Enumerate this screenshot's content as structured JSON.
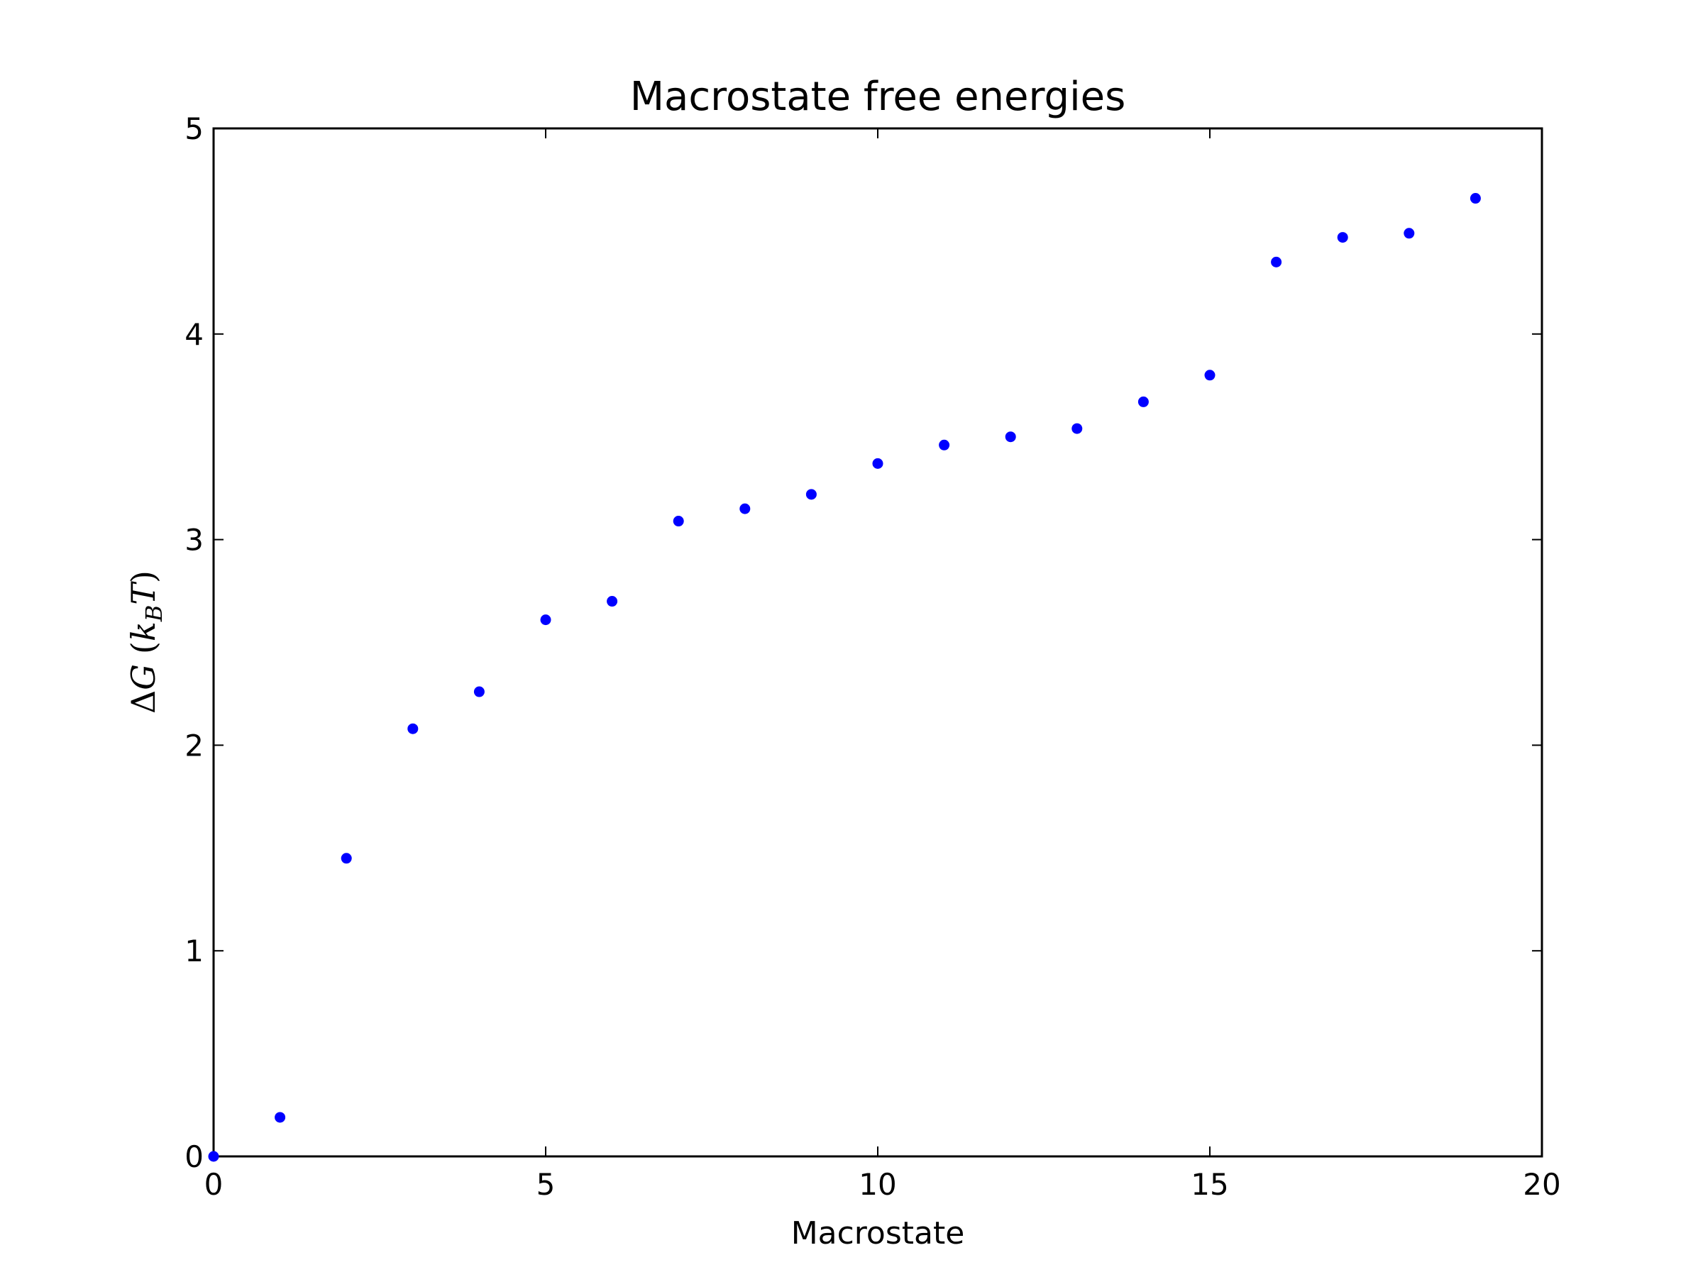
{
  "chart_data": {
    "type": "scatter",
    "title": "Macrostate free energies",
    "xlabel": "Macrostate",
    "ylabel": "ΔG (k_B T)",
    "ylabel_parts": {
      "delta": "Δ",
      "G": "G",
      "open": "(",
      "k": "k",
      "sub": "B",
      "T": "T",
      "close": ")"
    },
    "xlim": [
      0,
      20
    ],
    "ylim": [
      0,
      5
    ],
    "xticks": [
      0,
      5,
      10,
      15,
      20
    ],
    "yticks": [
      0,
      1,
      2,
      3,
      4,
      5
    ],
    "grid": false,
    "marker_color": "#0000ff",
    "x": [
      0,
      1,
      2,
      3,
      4,
      5,
      6,
      7,
      8,
      9,
      10,
      11,
      12,
      13,
      14,
      15,
      16,
      17,
      18,
      19
    ],
    "y": [
      0.0,
      0.19,
      1.45,
      2.08,
      2.26,
      2.61,
      2.7,
      3.09,
      3.15,
      3.22,
      3.37,
      3.46,
      3.5,
      3.54,
      3.67,
      3.8,
      4.35,
      4.47,
      4.49,
      4.66
    ]
  }
}
